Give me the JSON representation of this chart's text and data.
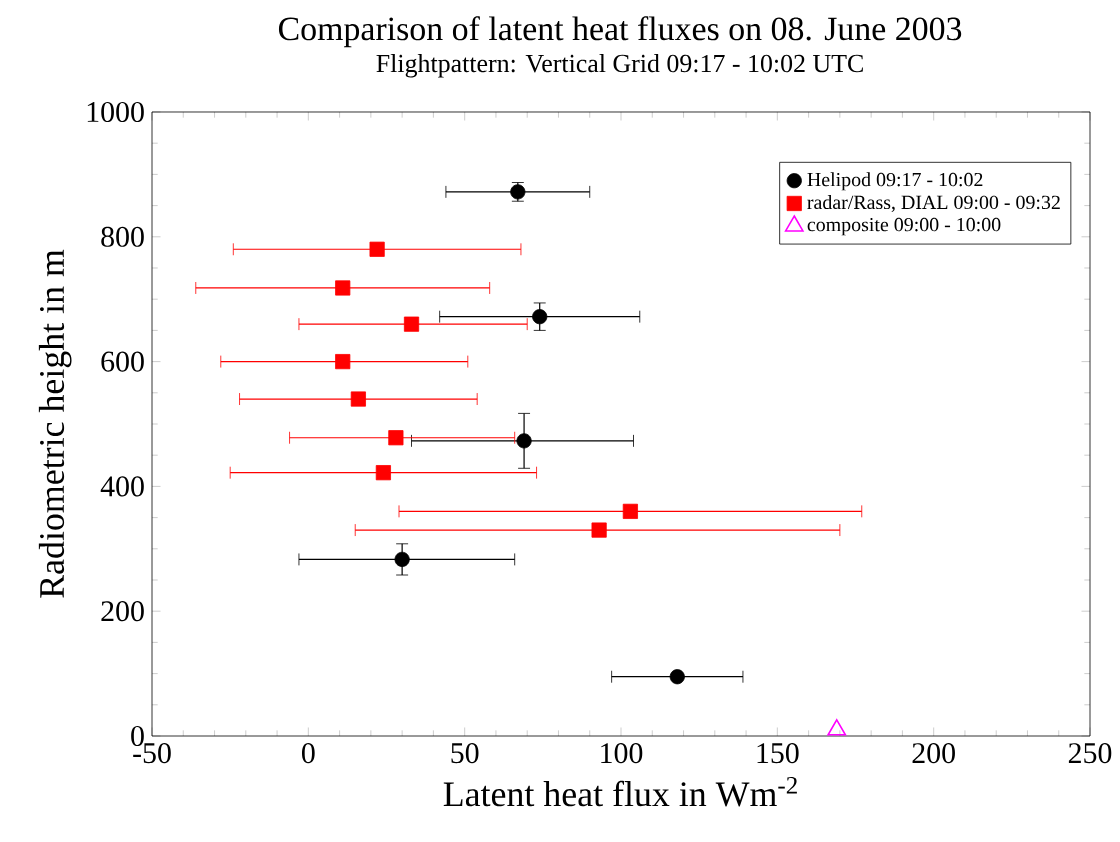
{
  "chart_data": {
    "type": "scatter",
    "title": "Comparison of latent heat fluxes on 08. June 2003",
    "subtitle": "Flightpattern: Vertical Grid  09:17 - 10:02 UTC",
    "xlabel": "Latent heat flux in Wm$^{-2}$",
    "ylabel": "Radiometric height in m",
    "xlim": [
      -50,
      250
    ],
    "xticks": [
      -50,
      0,
      50,
      100,
      150,
      200,
      250
    ],
    "ylim": [
      0,
      1000
    ],
    "yticks": [
      0,
      200,
      400,
      600,
      800,
      1000
    ],
    "legend": "top right",
    "grid": false,
    "series": [
      {
        "name": "Helipod 09:17 - 10:02",
        "color": "#000000",
        "marker": "circle",
        "x": [
          67,
          74,
          69,
          30,
          118
        ],
        "values": [
          872,
          672,
          473,
          283,
          95
        ],
        "xerrors": [
          [
            44,
            90
          ],
          [
            42,
            106
          ],
          [
            33,
            104
          ],
          [
            -3,
            66
          ],
          [
            97,
            139
          ]
        ],
        "errors": [
          15,
          22,
          44,
          25,
          null
        ]
      },
      {
        "name": "radar/Rass, DIAL 09:00 - 09:32",
        "color": "#ff0000",
        "marker": "square",
        "x": [
          22,
          11,
          33,
          11,
          16,
          28,
          24,
          103,
          93
        ],
        "values": [
          780,
          718,
          660,
          600,
          540,
          478,
          422,
          360,
          330
        ],
        "xerrors": [
          [
            -24,
            68
          ],
          [
            -36,
            58
          ],
          [
            -3,
            70
          ],
          [
            -28,
            51
          ],
          [
            -22,
            54
          ],
          [
            -6,
            66
          ],
          [
            -25,
            73
          ],
          [
            29,
            177
          ],
          [
            15,
            170
          ]
        ]
      },
      {
        "name": "composite 09:00 - 10:00",
        "color": "#ff00ff",
        "marker": "triangle",
        "x": [
          169
        ],
        "values": [
          10
        ]
      }
    ]
  }
}
